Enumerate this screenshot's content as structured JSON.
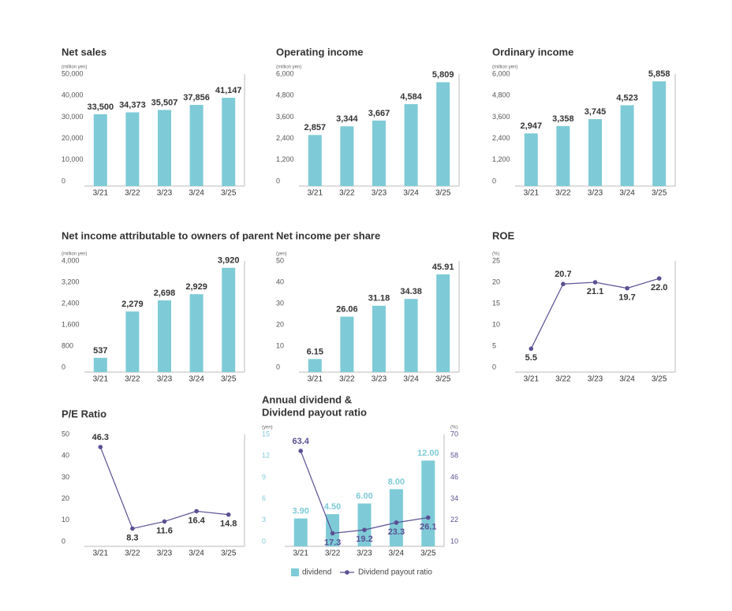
{
  "chart_data": [
    {
      "type": "bar",
      "title": "Net sales",
      "unit": "(million yen)",
      "color": "#7ecbd7",
      "categories": [
        "3/21",
        "3/22",
        "3/23",
        "3/24",
        "3/25"
      ],
      "values": [
        33500,
        34373,
        35507,
        37856,
        41147
      ],
      "value_labels": [
        "33,500",
        "34,373",
        "35,507",
        "37,856",
        "41,147"
      ],
      "ylim": [
        0,
        50000
      ],
      "yticks": [
        0,
        {
          "value": 10000,
          "label": "10,000"
        },
        {
          "value": 20000,
          "label": "20,000"
        },
        {
          "value": 30000,
          "label": "30,000"
        },
        {
          "value": 40000,
          "label": "40,000"
        },
        {
          "value": 50000,
          "label": "50,000"
        }
      ]
    },
    {
      "type": "bar",
      "title": "Operating income",
      "unit": "(million yen)",
      "color": "#7ecbd7",
      "categories": [
        "3/21",
        "3/22",
        "3/23",
        "3/24",
        "3/25"
      ],
      "values": [
        2857,
        3344,
        3667,
        4584,
        5809
      ],
      "value_labels": [
        "2,857",
        "3,344",
        "3,667",
        "4,584",
        "5,809"
      ],
      "ylim": [
        0,
        6000
      ],
      "yticks": [
        0,
        {
          "value": 1200,
          "label": "1,200"
        },
        {
          "value": 2400,
          "label": "2,400"
        },
        {
          "value": 3600,
          "label": "3,600"
        },
        {
          "value": 4800,
          "label": "4,800"
        },
        {
          "value": 6000,
          "label": "6,000"
        }
      ]
    },
    {
      "type": "bar",
      "title": "Ordinary income",
      "unit": "(million yen)",
      "color": "#7ecbd7",
      "categories": [
        "3/21",
        "3/22",
        "3/23",
        "3/24",
        "3/25"
      ],
      "values": [
        2947,
        3358,
        3745,
        4523,
        5858
      ],
      "value_labels": [
        "2,947",
        "3,358",
        "3,745",
        "4,523",
        "5,858"
      ],
      "ylim": [
        0,
        6000
      ],
      "yticks": [
        0,
        {
          "value": 1200,
          "label": "1,200"
        },
        {
          "value": 2400,
          "label": "2,400"
        },
        {
          "value": 3600,
          "label": "3,600"
        },
        {
          "value": 4800,
          "label": "4,800"
        },
        {
          "value": 6000,
          "label": "6,000"
        }
      ]
    },
    {
      "type": "bar",
      "title": "Net income attributable to owners of parent",
      "unit": "(million yen)",
      "color": "#7ecbd7",
      "categories": [
        "3/21",
        "3/22",
        "3/23",
        "3/24",
        "3/25"
      ],
      "values": [
        537,
        2279,
        2698,
        2929,
        3920
      ],
      "value_labels": [
        "537",
        "2,279",
        "2,698",
        "2,929",
        "3,920"
      ],
      "ylim": [
        0,
        4000
      ],
      "yticks": [
        0,
        800,
        {
          "value": 1600,
          "label": "1,600"
        },
        {
          "value": 2400,
          "label": "2,400"
        },
        {
          "value": 3200,
          "label": "3,200"
        },
        {
          "value": 4000,
          "label": "4,000"
        }
      ]
    },
    {
      "type": "bar",
      "title": "Net income per share",
      "unit": "(yen)",
      "color": "#7ecbd7",
      "categories": [
        "3/21",
        "3/22",
        "3/23",
        "3/24",
        "3/25"
      ],
      "values": [
        6.15,
        26.06,
        31.18,
        34.38,
        45.91
      ],
      "ylim": [
        0,
        50
      ],
      "yticks": [
        0,
        10,
        20,
        30,
        40,
        50
      ]
    },
    {
      "type": "line",
      "title": "ROE",
      "unit": "(%)",
      "color": "#5c4f94",
      "categories": [
        "3/21",
        "3/22",
        "3/23",
        "3/24",
        "3/25"
      ],
      "values": [
        5.5,
        20.7,
        21.1,
        19.7,
        22.0
      ],
      "value_labels": [
        "5.5",
        "20.7",
        "21.1",
        "19.7",
        "22.0"
      ],
      "ylim": [
        0,
        25
      ],
      "yticks": [
        0,
        5,
        10,
        15,
        20,
        25
      ]
    },
    {
      "type": "line",
      "title": "P/E Ratio",
      "color": "#5c4f94",
      "categories": [
        "3/21",
        "3/22",
        "3/23",
        "3/24",
        "3/25"
      ],
      "values": [
        46.3,
        8.3,
        11.6,
        16.4,
        14.8
      ],
      "ylim": [
        0,
        50
      ],
      "yticks": [
        0,
        10,
        20,
        30,
        40,
        50
      ]
    },
    {
      "type": "combo",
      "title": [
        "Annual dividend &",
        "Dividend payout ratio"
      ],
      "unit": "(yen)",
      "y2_unit": "(%)",
      "categories": [
        "3/21",
        "3/22",
        "3/23",
        "3/24",
        "3/25"
      ],
      "series": [
        {
          "name": "dividend",
          "type": "bar",
          "color": "#7ecbd7",
          "values": [
            3.9,
            4.5,
            6,
            8,
            12
          ],
          "value_labels": [
            "3.90",
            "4.50",
            "6.00",
            "8.00",
            "12.00"
          ]
        },
        {
          "name": "Dividend payout ratio",
          "type": "line",
          "axis": "y2",
          "color": "#5c4f94",
          "values": [
            63.4,
            17.3,
            19.2,
            23.3,
            26.1
          ]
        }
      ],
      "ylim": [
        0,
        15
      ],
      "yticks": [
        0,
        3,
        6,
        9,
        12,
        15
      ],
      "y2lim": [
        10,
        70
      ],
      "y2ticks": [
        10,
        22,
        34,
        46,
        58,
        70
      ]
    }
  ]
}
